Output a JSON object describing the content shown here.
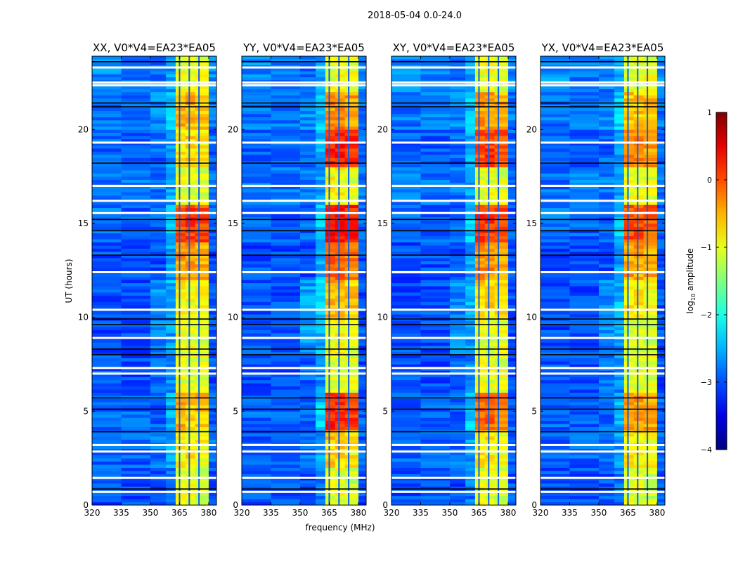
{
  "chart_data": {
    "type": "heatmap",
    "title": "2018-05-04 0.0-24.0",
    "xlabel": "frequency (MHz)",
    "ylabel": "UT (hours)",
    "xlim": [
      320,
      384
    ],
    "ylim": [
      0,
      23.9
    ],
    "xticks": [
      320,
      335,
      350,
      365,
      380
    ],
    "yticks": [
      0,
      5,
      10,
      15,
      20
    ],
    "colormap": "jet",
    "colorbar": {
      "label": "log10 amplitude",
      "label_main": "log",
      "label_sub": "10",
      "label_rest": " amplitude",
      "range": [
        -4,
        1
      ],
      "ticks": [
        1,
        0,
        -1,
        -2,
        -3,
        -4
      ]
    },
    "freq_edges": [
      320,
      335,
      350,
      358,
      363,
      368,
      373,
      380,
      384
    ],
    "time_edges": [
      0,
      2,
      4,
      6,
      8,
      10,
      12,
      14,
      16,
      18,
      20,
      22,
      23.9
    ],
    "flagged_hours": [
      0.7,
      1.45,
      2.85,
      3.2,
      7.0,
      7.3,
      8.9,
      10.4,
      12.4,
      15.55,
      16.2,
      17.0,
      19.3,
      22.35,
      22.5,
      23.3
    ],
    "zero_hours": [
      0.85,
      3.9,
      5.1,
      5.7,
      8.0,
      8.3,
      9.6,
      9.9,
      13.3,
      14.6,
      15.2,
      18.2,
      21.2,
      21.4,
      23.6
    ],
    "panels": [
      {
        "title": "XX, V0*V4=EA23*EA05",
        "values": [
          [
            -3.0,
            -3.0,
            -3.0,
            -2.8,
            -1.0,
            -1.0,
            -1.1,
            -3.0
          ],
          [
            -2.9,
            -2.9,
            -2.8,
            -2.6,
            -0.8,
            -0.8,
            -0.9,
            -2.9
          ],
          [
            -2.9,
            -2.9,
            -2.9,
            -2.5,
            -0.5,
            -0.6,
            -0.6,
            -2.9
          ],
          [
            -3.0,
            -3.0,
            -2.9,
            -2.7,
            -1.0,
            -1.0,
            -1.0,
            -3.0
          ],
          [
            -3.0,
            -3.0,
            -2.7,
            -2.6,
            -1.0,
            -1.0,
            -1.1,
            -3.0
          ],
          [
            -3.0,
            -3.0,
            -2.7,
            -2.5,
            -0.8,
            -0.9,
            -0.9,
            -3.0
          ],
          [
            -3.0,
            -3.0,
            -3.0,
            -2.6,
            -0.4,
            -0.4,
            -0.5,
            -3.0
          ],
          [
            -2.8,
            -2.9,
            -2.9,
            -2.4,
            0.0,
            0.1,
            0.0,
            -2.9
          ],
          [
            -2.8,
            -2.8,
            -2.8,
            -2.6,
            -1.0,
            -1.0,
            -1.0,
            -2.8
          ],
          [
            -2.9,
            -2.9,
            -2.9,
            -2.6,
            -0.7,
            -0.7,
            -0.8,
            -2.9
          ],
          [
            -2.8,
            -2.8,
            -2.7,
            -2.4,
            -0.5,
            -0.5,
            -0.6,
            -2.8
          ],
          [
            -2.7,
            -2.8,
            -2.8,
            -2.6,
            -1.0,
            -1.0,
            -1.0,
            -2.7
          ]
        ]
      },
      {
        "title": "YY, V0*V4=EA23*EA05",
        "values": [
          [
            -3.0,
            -3.0,
            -3.0,
            -2.8,
            -1.0,
            -1.0,
            -1.1,
            -3.0
          ],
          [
            -2.9,
            -2.9,
            -2.8,
            -2.6,
            -0.6,
            -0.7,
            -0.8,
            -2.9
          ],
          [
            -2.9,
            -2.9,
            -2.9,
            -2.4,
            0.2,
            0.2,
            0.1,
            -2.9
          ],
          [
            -3.0,
            -3.0,
            -2.9,
            -2.7,
            -1.0,
            -1.0,
            -1.0,
            -3.0
          ],
          [
            -3.0,
            -3.0,
            -2.6,
            -2.5,
            -0.9,
            -0.9,
            -1.0,
            -3.0
          ],
          [
            -3.0,
            -3.0,
            -2.6,
            -2.4,
            -0.5,
            -0.5,
            -0.6,
            -3.0
          ],
          [
            -3.0,
            -3.0,
            -3.0,
            -2.5,
            -0.1,
            -0.1,
            -0.2,
            -3.0
          ],
          [
            -2.8,
            -2.9,
            -2.9,
            -2.4,
            0.3,
            0.3,
            0.2,
            -2.9
          ],
          [
            -2.8,
            -2.8,
            -2.8,
            -2.6,
            -0.9,
            -0.9,
            -1.0,
            -2.8
          ],
          [
            -2.9,
            -2.9,
            -2.9,
            -2.5,
            0.2,
            0.3,
            0.2,
            -2.9
          ],
          [
            -2.8,
            -2.8,
            -2.7,
            -2.4,
            -0.3,
            -0.3,
            -0.4,
            -2.8
          ],
          [
            -2.7,
            -2.8,
            -2.8,
            -2.6,
            -1.0,
            -0.9,
            -1.0,
            -2.7
          ]
        ]
      },
      {
        "title": "XY, V0*V4=EA23*EA05",
        "values": [
          [
            -3.0,
            -3.0,
            -3.0,
            -2.8,
            -1.0,
            -1.0,
            -1.1,
            -3.0
          ],
          [
            -2.9,
            -2.9,
            -2.8,
            -2.6,
            -0.8,
            -0.8,
            -0.9,
            -2.9
          ],
          [
            -2.9,
            -2.9,
            -2.9,
            -2.4,
            -0.1,
            -0.1,
            -0.2,
            -2.9
          ],
          [
            -3.0,
            -3.0,
            -2.9,
            -2.7,
            -1.0,
            -1.0,
            -1.0,
            -3.0
          ],
          [
            -3.0,
            -3.0,
            -2.7,
            -2.6,
            -1.0,
            -1.0,
            -1.0,
            -3.0
          ],
          [
            -3.0,
            -3.0,
            -2.7,
            -2.5,
            -0.7,
            -0.7,
            -0.8,
            -3.0
          ],
          [
            -3.0,
            -3.0,
            -3.0,
            -2.6,
            -0.3,
            -0.3,
            -0.4,
            -3.0
          ],
          [
            -2.8,
            -2.9,
            -2.9,
            -2.4,
            0.1,
            0.1,
            0.0,
            -2.9
          ],
          [
            -2.8,
            -2.8,
            -2.8,
            -2.6,
            -1.0,
            -1.0,
            -1.0,
            -2.8
          ],
          [
            -2.9,
            -2.9,
            -2.9,
            -2.5,
            0.0,
            0.1,
            0.0,
            -2.9
          ],
          [
            -2.8,
            -2.8,
            -2.7,
            -2.4,
            -0.4,
            -0.4,
            -0.5,
            -2.8
          ],
          [
            -2.7,
            -2.8,
            -2.8,
            -2.6,
            -1.0,
            -1.0,
            -1.0,
            -2.7
          ]
        ]
      },
      {
        "title": "YX, V0*V4=EA23*EA05",
        "values": [
          [
            -3.0,
            -3.0,
            -3.0,
            -2.8,
            -1.0,
            -1.0,
            -1.1,
            -3.0
          ],
          [
            -2.9,
            -2.9,
            -2.8,
            -2.6,
            -0.8,
            -0.8,
            -0.9,
            -2.9
          ],
          [
            -2.9,
            -2.9,
            -2.9,
            -2.5,
            -0.3,
            -0.4,
            -0.4,
            -2.9
          ],
          [
            -3.0,
            -3.0,
            -2.9,
            -2.7,
            -1.0,
            -1.0,
            -1.0,
            -3.0
          ],
          [
            -3.0,
            -3.0,
            -2.7,
            -2.6,
            -1.0,
            -1.0,
            -1.1,
            -3.0
          ],
          [
            -3.0,
            -3.0,
            -2.7,
            -2.5,
            -0.8,
            -0.8,
            -0.9,
            -3.0
          ],
          [
            -3.0,
            -3.0,
            -3.0,
            -2.6,
            -0.4,
            -0.4,
            -0.5,
            -3.0
          ],
          [
            -2.8,
            -2.9,
            -2.9,
            -2.4,
            0.0,
            0.0,
            -0.1,
            -2.9
          ],
          [
            -2.8,
            -2.8,
            -2.8,
            -2.6,
            -1.0,
            -1.0,
            -1.0,
            -2.8
          ],
          [
            -2.9,
            -2.9,
            -2.9,
            -2.6,
            -0.3,
            -0.3,
            -0.4,
            -2.9
          ],
          [
            -2.8,
            -2.8,
            -2.7,
            -2.4,
            -0.6,
            -0.6,
            -0.6,
            -2.8
          ],
          [
            -2.7,
            -2.8,
            -2.8,
            -2.6,
            -1.0,
            -1.0,
            -1.0,
            -2.7
          ]
        ]
      }
    ]
  }
}
